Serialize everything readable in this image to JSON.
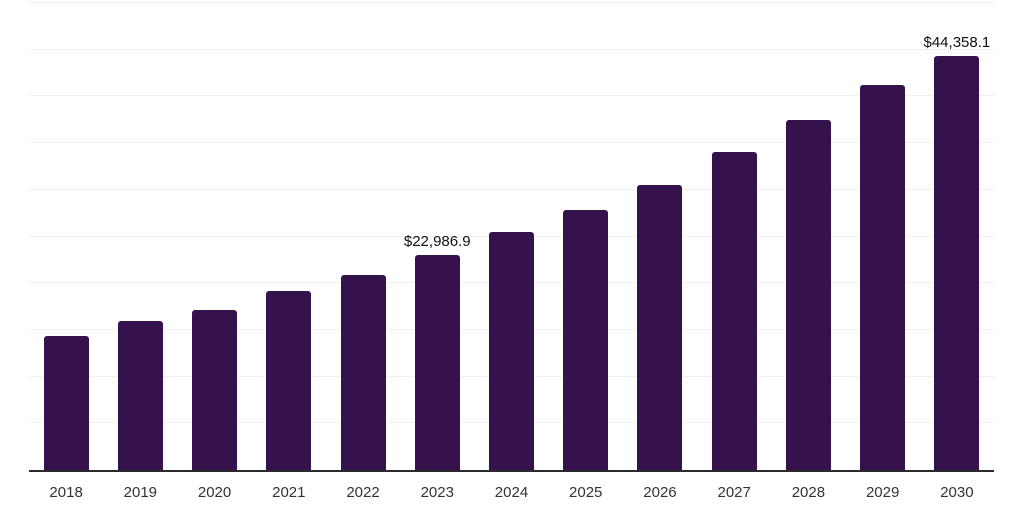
{
  "chart_data": {
    "type": "bar",
    "categories": [
      "2018",
      "2019",
      "2020",
      "2021",
      "2022",
      "2023",
      "2024",
      "2025",
      "2026",
      "2027",
      "2028",
      "2029",
      "2030"
    ],
    "values": [
      14400,
      16000,
      17100,
      19200,
      20900,
      22986.9,
      25500,
      27800,
      30500,
      34000,
      37500,
      41200,
      44358.1
    ],
    "data_labels": [
      {
        "category": "2023",
        "text": "$22,986.9"
      },
      {
        "category": "2030",
        "text": "$44,358.1"
      }
    ],
    "title": "",
    "xlabel": "",
    "ylabel": "",
    "ylim": [
      0,
      50000
    ],
    "gridline_interval": 5000,
    "grid": "horizontal",
    "legend": "none",
    "colors": {
      "bar": "#35124C",
      "gridline": "#F0F0F0",
      "axis_line": "#2B2B2B",
      "tick_label": "#333333",
      "data_label": "#111111",
      "background": "#FFFFFF"
    }
  }
}
